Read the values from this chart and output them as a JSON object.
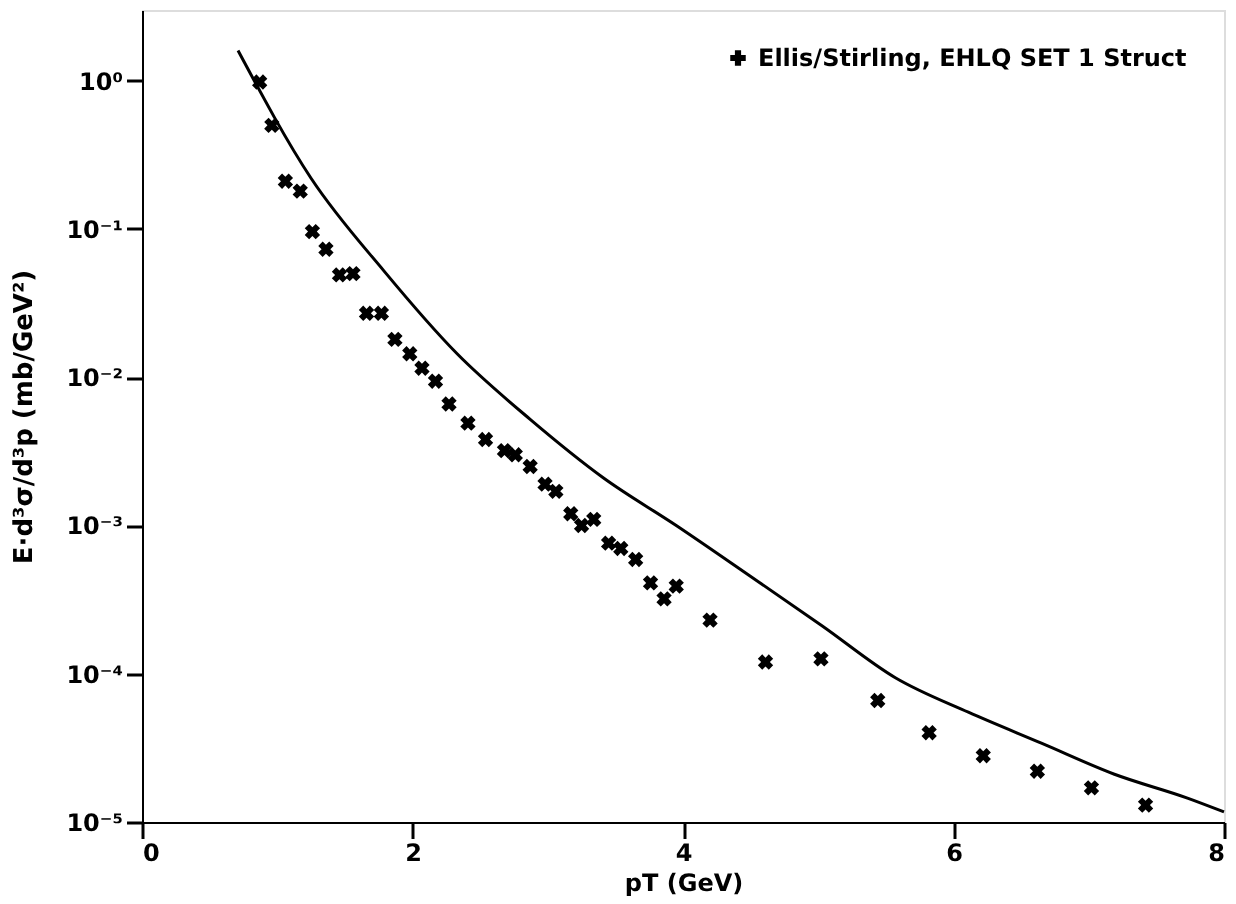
{
  "chart_data": {
    "type": "scatter",
    "xlabel": "pT (GeV)",
    "ylabel": "E·d³σ/d³p  (mb/GeV²)",
    "log": "y",
    "grid": false,
    "legend": "top right",
    "xlim": [
      0,
      8
    ],
    "xticks": [
      0,
      2,
      4,
      6,
      8
    ],
    "ylim": [
      1e-05,
      3
    ],
    "yticks": [
      {
        "value": 1,
        "label": "10⁰"
      },
      {
        "value": 0.1,
        "label": "10⁻¹"
      },
      {
        "value": 0.01,
        "label": "10⁻²"
      },
      {
        "value": 0.001,
        "label": "10⁻³"
      },
      {
        "value": 0.0001,
        "label": "10⁻⁴"
      },
      {
        "value": 1e-05,
        "label": "10⁻⁵"
      }
    ],
    "series": [
      {
        "name": "Ellis/Stirling, EHLQ SET 1 Struct",
        "marker": "cross",
        "color": "#000000",
        "x": [
          0.87,
          0.96,
          1.06,
          1.17,
          1.26,
          1.36,
          1.46,
          1.56,
          1.66,
          1.77,
          1.87,
          1.98,
          2.07,
          2.17,
          2.27,
          2.41,
          2.54,
          2.68,
          2.76,
          2.87,
          2.98,
          3.06,
          3.17,
          3.25,
          3.34,
          3.45,
          3.54,
          3.65,
          3.76,
          3.86,
          3.95,
          4.2,
          4.61,
          5.02,
          5.44,
          5.82,
          6.22,
          6.62,
          7.02,
          7.42
        ],
        "values": [
          0.98,
          0.5,
          0.21,
          0.18,
          0.096,
          0.073,
          0.049,
          0.05,
          0.027,
          0.027,
          0.018,
          0.0144,
          0.0115,
          0.0094,
          0.0066,
          0.0049,
          0.0038,
          0.0032,
          0.003,
          0.0025,
          0.0019,
          0.0017,
          0.0012,
          0.001,
          0.0011,
          0.00076,
          0.0007,
          0.00059,
          0.00041,
          0.00032,
          0.00039,
          0.00023,
          0.00012,
          0.000126,
          6.6e-05,
          4e-05,
          2.8e-05,
          2.2e-05,
          1.7e-05,
          1.3e-05
        ]
      },
      {
        "type": "line",
        "line_style": "solid",
        "color": "#000000",
        "x": [
          0.71,
          1.25,
          1.79,
          2.33,
          2.87,
          3.41,
          3.95,
          4.49,
          5.03,
          5.57,
          6.11,
          6.65,
          7.19,
          7.73,
          8.0
        ],
        "values": [
          1.6,
          0.22,
          0.052,
          0.0144,
          0.0052,
          0.0021,
          0.001,
          0.00046,
          0.00021,
          9.4e-05,
          5.5e-05,
          3.4e-05,
          2.1e-05,
          1.45e-05,
          1.17e-05
        ]
      }
    ]
  }
}
